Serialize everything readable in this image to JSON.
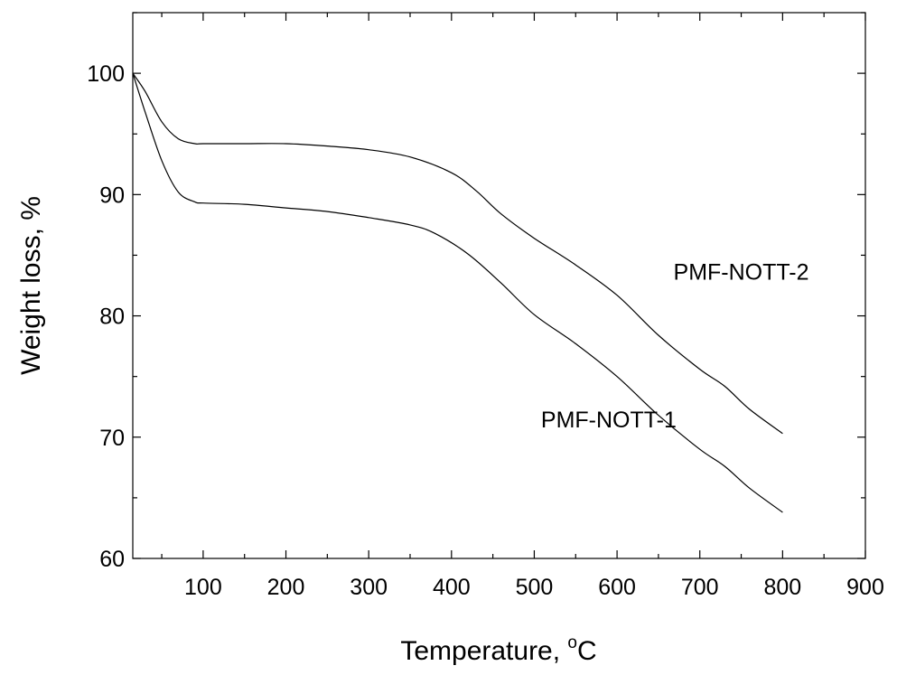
{
  "chart_data": {
    "type": "line",
    "xlabel": "Temperature, ",
    "xlabel_unit_sup": "o",
    "xlabel_unit": "C",
    "ylabel": "Weight loss, %",
    "xlim": [
      15,
      900
    ],
    "ylim": [
      60,
      105
    ],
    "x_ticks": [
      100,
      200,
      300,
      400,
      500,
      600,
      700,
      800,
      900
    ],
    "x_minor_ticks": [
      50,
      150,
      250,
      350,
      450,
      550,
      650,
      750,
      850
    ],
    "y_ticks": [
      60,
      70,
      80,
      90,
      100
    ],
    "y_minor_ticks": [
      65,
      75,
      85,
      95,
      105
    ],
    "grid": false,
    "legend": "none",
    "series": [
      {
        "name": "PMF-NOTT-2",
        "label_at": [
          750,
          83
        ],
        "x": [
          15,
          30,
          50,
          70,
          90,
          100,
          150,
          200,
          250,
          300,
          350,
          400,
          430,
          460,
          500,
          550,
          600,
          650,
          700,
          730,
          760,
          800
        ],
        "y": [
          100,
          98.5,
          96.0,
          94.6,
          94.2,
          94.2,
          94.2,
          94.2,
          94.0,
          93.7,
          93.1,
          91.8,
          90.3,
          88.4,
          86.4,
          84.2,
          81.7,
          78.4,
          75.6,
          74.2,
          72.3,
          70.3
        ]
      },
      {
        "name": "PMF-NOTT-1",
        "label_at": [
          590,
          70.8
        ],
        "x": [
          15,
          30,
          50,
          70,
          90,
          100,
          150,
          200,
          250,
          300,
          350,
          380,
          420,
          460,
          500,
          550,
          600,
          650,
          700,
          730,
          760,
          800
        ],
        "y": [
          100,
          96.8,
          92.8,
          90.2,
          89.4,
          89.3,
          89.2,
          88.9,
          88.6,
          88.1,
          87.5,
          86.8,
          85.1,
          82.7,
          80.1,
          77.7,
          75.0,
          71.8,
          69.0,
          67.6,
          65.8,
          63.8
        ]
      }
    ]
  }
}
